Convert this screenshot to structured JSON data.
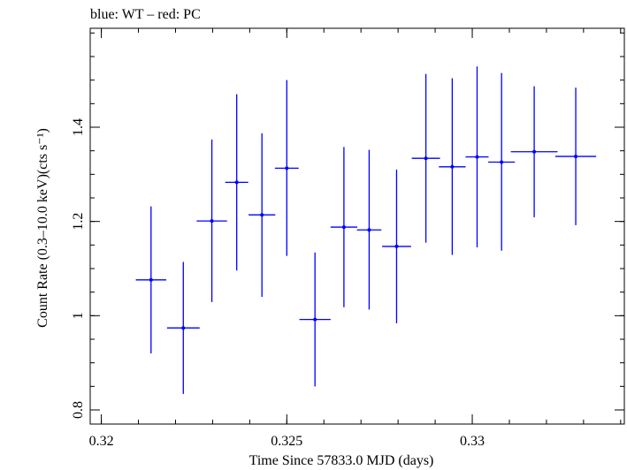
{
  "chart_data": {
    "type": "scatter",
    "title": "blue: WT – red: PC",
    "xlabel": "Time Since 57833.0 MJD (days)",
    "ylabel": "Count Rate (0.3–10.0 keV)(cts s⁻¹)",
    "xlim": [
      0.3197,
      0.3341
    ],
    "ylim": [
      0.77,
      1.61
    ],
    "x_ticks": [
      {
        "value": 0.32,
        "label": "0.32"
      },
      {
        "value": 0.325,
        "label": "0.325"
      },
      {
        "value": 0.33,
        "label": "0.33"
      }
    ],
    "y_ticks": [
      {
        "value": 0.8,
        "label": "0.8"
      },
      {
        "value": 1.0,
        "label": "1"
      },
      {
        "value": 1.2,
        "label": "1.2"
      },
      {
        "value": 1.4,
        "label": "1.4"
      }
    ],
    "x_minor_step": 0.001,
    "y_minor_step": 0.05,
    "series": [
      {
        "color": "#0000ff",
        "points": [
          {
            "x": 0.32134,
            "xerr": 0.00041,
            "y": 1.076,
            "ylo": 0.92,
            "yhi": 1.232
          },
          {
            "x": 0.32221,
            "xerr": 0.00044,
            "y": 0.974,
            "ylo": 0.834,
            "yhi": 1.114
          },
          {
            "x": 0.32298,
            "xerr": 0.00041,
            "y": 1.201,
            "ylo": 1.029,
            "yhi": 1.374
          },
          {
            "x": 0.32365,
            "xerr": 0.00031,
            "y": 1.283,
            "ylo": 1.096,
            "yhi": 1.47
          },
          {
            "x": 0.32433,
            "xerr": 0.00036,
            "y": 1.214,
            "ylo": 1.04,
            "yhi": 1.387
          },
          {
            "x": 0.325,
            "xerr": 0.00032,
            "y": 1.313,
            "ylo": 1.127,
            "yhi": 1.5
          },
          {
            "x": 0.32576,
            "xerr": 0.00042,
            "y": 0.992,
            "ylo": 0.85,
            "yhi": 1.134
          },
          {
            "x": 0.32654,
            "xerr": 0.00036,
            "y": 1.188,
            "ylo": 1.018,
            "yhi": 1.358
          },
          {
            "x": 0.32722,
            "xerr": 0.00033,
            "y": 1.182,
            "ylo": 1.013,
            "yhi": 1.352
          },
          {
            "x": 0.32796,
            "xerr": 0.00039,
            "y": 1.147,
            "ylo": 0.984,
            "yhi": 1.31
          },
          {
            "x": 0.32875,
            "xerr": 0.00038,
            "y": 1.334,
            "ylo": 1.155,
            "yhi": 1.513
          },
          {
            "x": 0.32946,
            "xerr": 0.00036,
            "y": 1.316,
            "ylo": 1.129,
            "yhi": 1.504
          },
          {
            "x": 0.33013,
            "xerr": 0.00031,
            "y": 1.337,
            "ylo": 1.145,
            "yhi": 1.529
          },
          {
            "x": 0.33079,
            "xerr": 0.00036,
            "y": 1.326,
            "ylo": 1.138,
            "yhi": 1.515
          },
          {
            "x": 0.33167,
            "xerr": 0.00063,
            "y": 1.348,
            "ylo": 1.209,
            "yhi": 1.487
          },
          {
            "x": 0.33279,
            "xerr": 0.00055,
            "y": 1.338,
            "ylo": 1.192,
            "yhi": 1.484
          }
        ]
      }
    ]
  }
}
